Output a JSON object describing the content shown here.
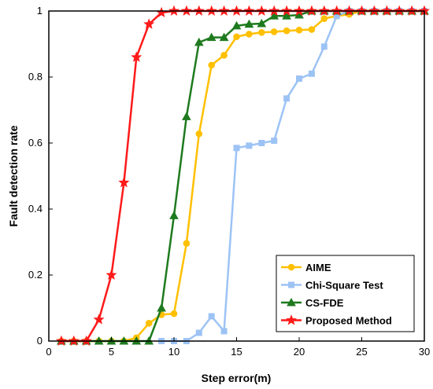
{
  "chart_data": {
    "type": "line",
    "xlabel": "Step error(m)",
    "ylabel": "Fault detection rate",
    "xlim": [
      0,
      30
    ],
    "ylim": [
      0,
      1
    ],
    "xticks": [
      0,
      5,
      10,
      15,
      20,
      25,
      30
    ],
    "yticks": [
      0,
      0.2,
      0.4,
      0.6,
      0.8,
      1
    ],
    "xtick_labels": [
      "0",
      "5",
      "10",
      "15",
      "20",
      "25",
      "30"
    ],
    "ytick_labels": [
      "0",
      "0.2",
      "0.4",
      "0.6",
      "0.8",
      "1"
    ],
    "grid": false,
    "legend_position": "bottom-right",
    "series": [
      {
        "name": "AIME",
        "color": "#FFC000",
        "marker": "circle",
        "x": [
          1,
          2,
          3,
          4,
          5,
          6,
          7,
          8,
          9,
          10,
          11,
          12,
          13,
          14,
          15,
          16,
          17,
          18,
          19,
          20,
          21,
          22,
          23,
          24,
          25,
          26,
          27,
          28,
          29,
          30
        ],
        "y": [
          0,
          0,
          0,
          0,
          0,
          0,
          0.01,
          0.054,
          0.08,
          0.083,
          0.296,
          0.628,
          0.836,
          0.866,
          0.922,
          0.93,
          0.935,
          0.937,
          0.94,
          0.942,
          0.944,
          0.977,
          0.985,
          0.99,
          1,
          1,
          1,
          1,
          1,
          1
        ]
      },
      {
        "name": "Chi-Square Test",
        "color": "#9DC3F5",
        "marker": "square",
        "x": [
          9,
          10,
          11,
          12,
          13,
          14,
          15,
          16,
          17,
          18,
          19,
          20,
          21,
          22,
          23,
          24,
          25,
          26,
          27,
          28,
          29,
          30
        ],
        "y": [
          0,
          0,
          0,
          0.025,
          0.075,
          0.03,
          0.585,
          0.592,
          0.6,
          0.607,
          0.735,
          0.795,
          0.81,
          0.892,
          0.985,
          1,
          1,
          1,
          1,
          1,
          1,
          1
        ]
      },
      {
        "name": "CS-FDE",
        "color": "#1E7A1E",
        "marker": "triangle",
        "x": [
          1,
          2,
          3,
          4,
          5,
          6,
          7,
          8,
          9,
          10,
          11,
          12,
          13,
          14,
          15,
          16,
          17,
          18,
          19,
          20,
          21,
          22,
          23,
          24,
          25,
          26,
          27,
          28,
          29,
          30
        ],
        "y": [
          0,
          0,
          0,
          0,
          0,
          0,
          0,
          0,
          0.1,
          0.38,
          0.68,
          0.905,
          0.92,
          0.92,
          0.955,
          0.96,
          0.962,
          0.985,
          0.985,
          0.988,
          1,
          1,
          1,
          1,
          1,
          1,
          1,
          1,
          1,
          1
        ]
      },
      {
        "name": "Proposed Method",
        "color": "#FF1A1A",
        "marker": "star",
        "x": [
          1,
          2,
          3,
          4,
          5,
          6,
          7,
          8,
          9,
          10,
          11,
          12,
          13,
          14,
          15,
          16,
          17,
          18,
          19,
          20,
          21,
          22,
          23,
          24,
          25,
          26,
          27,
          28,
          29,
          30
        ],
        "y": [
          0,
          0,
          0,
          0.065,
          0.2,
          0.48,
          0.86,
          0.96,
          0.995,
          1,
          1,
          1,
          1,
          1,
          1,
          1,
          1,
          1,
          1,
          1,
          1,
          1,
          1,
          1,
          1,
          1,
          1,
          1,
          1,
          1
        ]
      }
    ]
  }
}
